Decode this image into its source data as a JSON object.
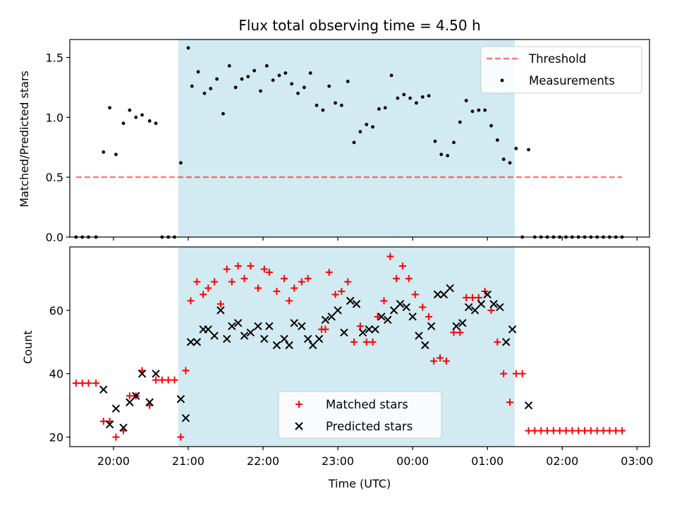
{
  "chart_data": [
    {
      "type": "scatter",
      "title": "Flux total observing time = 4.50 h",
      "xlabel": "",
      "ylabel": "Matched/Predicted stars",
      "xlim": [
        "19:25",
        "03:10"
      ],
      "ylim": [
        0,
        1.65
      ],
      "yticks": [
        "0.0",
        "0.5",
        "1.0",
        "1.5"
      ],
      "shaded_span": [
        "20:52",
        "01:22"
      ],
      "shade_color": "#add8e6",
      "threshold": {
        "name": "Threshold",
        "y": 0.5,
        "x_start": "19:30",
        "x_end": "02:48",
        "color": "#ff0000"
      },
      "series": [
        {
          "name": "Measurements",
          "marker": "dot",
          "color": "#000000",
          "points": [
            [
              "19:30",
              0
            ],
            [
              "19:35",
              0
            ],
            [
              "19:40",
              0
            ],
            [
              "19:46",
              0
            ],
            [
              "19:52",
              0.71
            ],
            [
              "19:57",
              1.08
            ],
            [
              "20:02",
              0.69
            ],
            [
              "20:08",
              0.95
            ],
            [
              "20:13",
              1.06
            ],
            [
              "20:18",
              1.0
            ],
            [
              "20:23",
              1.02
            ],
            [
              "20:29",
              0.97
            ],
            [
              "20:34",
              0.95
            ],
            [
              "20:39",
              0
            ],
            [
              "20:44",
              0
            ],
            [
              "20:49",
              0
            ],
            [
              "20:54",
              0.62
            ],
            [
              "21:00",
              1.58
            ],
            [
              "21:03",
              1.26
            ],
            [
              "21:08",
              1.38
            ],
            [
              "21:13",
              1.2
            ],
            [
              "21:18",
              1.24
            ],
            [
              "21:23",
              1.32
            ],
            [
              "21:28",
              1.03
            ],
            [
              "21:33",
              1.43
            ],
            [
              "21:38",
              1.25
            ],
            [
              "21:43",
              1.32
            ],
            [
              "21:48",
              1.34
            ],
            [
              "21:53",
              1.39
            ],
            [
              "21:58",
              1.22
            ],
            [
              "22:03",
              1.43
            ],
            [
              "22:08",
              1.31
            ],
            [
              "22:13",
              1.35
            ],
            [
              "22:18",
              1.37
            ],
            [
              "22:23",
              1.28
            ],
            [
              "22:28",
              1.2
            ],
            [
              "22:33",
              1.25
            ],
            [
              "22:38",
              1.37
            ],
            [
              "22:43",
              1.1
            ],
            [
              "22:48",
              1.06
            ],
            [
              "22:53",
              1.26
            ],
            [
              "22:58",
              1.12
            ],
            [
              "23:03",
              1.1
            ],
            [
              "23:08",
              1.3
            ],
            [
              "23:13",
              0.79
            ],
            [
              "23:18",
              0.88
            ],
            [
              "23:23",
              0.94
            ],
            [
              "23:28",
              0.92
            ],
            [
              "23:33",
              1.07
            ],
            [
              "23:38",
              1.08
            ],
            [
              "23:43",
              1.35
            ],
            [
              "23:48",
              1.16
            ],
            [
              "23:53",
              1.19
            ],
            [
              "23:58",
              1.16
            ],
            [
              "00:03",
              1.12
            ],
            [
              "00:08",
              1.17
            ],
            [
              "00:13",
              1.18
            ],
            [
              "00:18",
              0.8
            ],
            [
              "00:23",
              0.69
            ],
            [
              "00:28",
              0.68
            ],
            [
              "00:33",
              0.79
            ],
            [
              "00:38",
              0.96
            ],
            [
              "00:43",
              1.14
            ],
            [
              "00:48",
              1.05
            ],
            [
              "00:53",
              1.06
            ],
            [
              "00:58",
              1.06
            ],
            [
              "01:03",
              0.93
            ],
            [
              "01:08",
              0.81
            ],
            [
              "01:13",
              0.65
            ],
            [
              "01:18",
              0.62
            ],
            [
              "01:23",
              0.74
            ],
            [
              "01:28",
              0
            ],
            [
              "01:33",
              0.73
            ],
            [
              "01:38",
              0
            ],
            [
              "01:43",
              0
            ],
            [
              "01:48",
              0
            ],
            [
              "01:53",
              0
            ],
            [
              "01:58",
              0
            ],
            [
              "02:03",
              0
            ],
            [
              "02:08",
              0
            ],
            [
              "02:13",
              0
            ],
            [
              "02:18",
              0
            ],
            [
              "02:23",
              0
            ],
            [
              "02:28",
              0
            ],
            [
              "02:33",
              0
            ],
            [
              "02:38",
              0
            ],
            [
              "02:43",
              0
            ],
            [
              "02:48",
              0
            ]
          ]
        }
      ],
      "legend": {
        "position": "upper right",
        "entries": [
          "Threshold",
          "Measurements"
        ]
      }
    },
    {
      "type": "scatter",
      "title": "",
      "xlabel": "Time (UTC)",
      "ylabel": "Count",
      "xlim": [
        "19:25",
        "03:10"
      ],
      "ylim": [
        17,
        80
      ],
      "yticks": [
        "20",
        "40",
        "60"
      ],
      "xticks": [
        "20:00",
        "21:00",
        "22:00",
        "23:00",
        "00:00",
        "01:00",
        "02:00",
        "03:00"
      ],
      "shaded_span": [
        "20:52",
        "01:22"
      ],
      "shade_color": "#add8e6",
      "series": [
        {
          "name": "Matched stars",
          "marker": "plus",
          "color": "#ff0000",
          "points": [
            [
              "19:30",
              37
            ],
            [
              "19:35",
              37
            ],
            [
              "19:40",
              37
            ],
            [
              "19:46",
              37
            ],
            [
              "19:52",
              25
            ],
            [
              "19:57",
              25
            ],
            [
              "20:02",
              20
            ],
            [
              "20:08",
              22
            ],
            [
              "20:13",
              33
            ],
            [
              "20:18",
              33
            ],
            [
              "20:23",
              41
            ],
            [
              "20:29",
              30
            ],
            [
              "20:34",
              38
            ],
            [
              "20:39",
              38
            ],
            [
              "20:44",
              38
            ],
            [
              "20:49",
              38
            ],
            [
              "20:54",
              20
            ],
            [
              "20:58",
              41
            ],
            [
              "21:02",
              63
            ],
            [
              "21:07",
              69
            ],
            [
              "21:12",
              65
            ],
            [
              "21:16",
              67
            ],
            [
              "21:21",
              69
            ],
            [
              "21:26",
              62
            ],
            [
              "21:31",
              73
            ],
            [
              "21:35",
              69
            ],
            [
              "21:40",
              74
            ],
            [
              "21:45",
              70
            ],
            [
              "21:50",
              74
            ],
            [
              "21:56",
              67
            ],
            [
              "22:01",
              73
            ],
            [
              "22:05",
              72
            ],
            [
              "22:11",
              66
            ],
            [
              "22:17",
              70
            ],
            [
              "22:21",
              63
            ],
            [
              "22:25",
              67
            ],
            [
              "22:31",
              69
            ],
            [
              "22:36",
              70
            ],
            [
              "22:47",
              54
            ],
            [
              "22:50",
              54
            ],
            [
              "22:53",
              72
            ],
            [
              "22:58",
              65
            ],
            [
              "23:03",
              66
            ],
            [
              "23:08",
              69
            ],
            [
              "23:13",
              50
            ],
            [
              "23:18",
              55
            ],
            [
              "23:23",
              50
            ],
            [
              "23:28",
              50
            ],
            [
              "23:32",
              58
            ],
            [
              "23:37",
              63
            ],
            [
              "23:42",
              77
            ],
            [
              "23:47",
              70
            ],
            [
              "23:52",
              74
            ],
            [
              "23:57",
              70
            ],
            [
              "00:02",
              65
            ],
            [
              "00:08",
              61
            ],
            [
              "00:13",
              58
            ],
            [
              "00:17",
              44
            ],
            [
              "00:22",
              45
            ],
            [
              "00:27",
              44
            ],
            [
              "00:33",
              53
            ],
            [
              "00:38",
              53
            ],
            [
              "00:43",
              64
            ],
            [
              "00:48",
              64
            ],
            [
              "00:53",
              64
            ],
            [
              "00:58",
              66
            ],
            [
              "01:03",
              60
            ],
            [
              "01:08",
              50
            ],
            [
              "01:13",
              40
            ],
            [
              "01:18",
              31
            ],
            [
              "01:23",
              40
            ],
            [
              "01:28",
              40
            ],
            [
              "01:33",
              22
            ],
            [
              "01:38",
              22
            ],
            [
              "01:43",
              22
            ],
            [
              "01:48",
              22
            ],
            [
              "01:53",
              22
            ],
            [
              "01:58",
              22
            ],
            [
              "02:03",
              22
            ],
            [
              "02:08",
              22
            ],
            [
              "02:13",
              22
            ],
            [
              "02:18",
              22
            ],
            [
              "02:23",
              22
            ],
            [
              "02:28",
              22
            ],
            [
              "02:33",
              22
            ],
            [
              "02:38",
              22
            ],
            [
              "02:43",
              22
            ],
            [
              "02:48",
              22
            ]
          ]
        },
        {
          "name": "Predicted stars",
          "marker": "x",
          "color": "#000000",
          "points": [
            [
              "19:52",
              35
            ],
            [
              "19:57",
              24
            ],
            [
              "20:02",
              29
            ],
            [
              "20:08",
              23
            ],
            [
              "20:13",
              31
            ],
            [
              "20:18",
              33
            ],
            [
              "20:23",
              40
            ],
            [
              "20:29",
              31
            ],
            [
              "20:34",
              40
            ],
            [
              "20:54",
              32
            ],
            [
              "20:58",
              26
            ],
            [
              "21:02",
              50
            ],
            [
              "21:07",
              50
            ],
            [
              "21:12",
              54
            ],
            [
              "21:16",
              54
            ],
            [
              "21:21",
              52
            ],
            [
              "21:26",
              60
            ],
            [
              "21:31",
              51
            ],
            [
              "21:35",
              55
            ],
            [
              "21:40",
              56
            ],
            [
              "21:45",
              52
            ],
            [
              "21:50",
              53
            ],
            [
              "21:56",
              55
            ],
            [
              "22:01",
              51
            ],
            [
              "22:05",
              55
            ],
            [
              "22:11",
              49
            ],
            [
              "22:17",
              51
            ],
            [
              "22:21",
              49
            ],
            [
              "22:25",
              56
            ],
            [
              "22:31",
              55
            ],
            [
              "22:36",
              51
            ],
            [
              "22:40",
              49
            ],
            [
              "22:45",
              51
            ],
            [
              "22:50",
              57
            ],
            [
              "22:55",
              58
            ],
            [
              "23:00",
              60
            ],
            [
              "23:05",
              53
            ],
            [
              "23:10",
              63
            ],
            [
              "23:15",
              62
            ],
            [
              "23:20",
              53
            ],
            [
              "23:25",
              54
            ],
            [
              "23:30",
              54
            ],
            [
              "23:35",
              58
            ],
            [
              "23:40",
              57
            ],
            [
              "23:45",
              60
            ],
            [
              "23:50",
              62
            ],
            [
              "23:55",
              61
            ],
            [
              "00:00",
              58
            ],
            [
              "00:05",
              52
            ],
            [
              "00:10",
              49
            ],
            [
              "00:15",
              55
            ],
            [
              "00:20",
              65
            ],
            [
              "00:25",
              65
            ],
            [
              "00:30",
              67
            ],
            [
              "00:35",
              55
            ],
            [
              "00:40",
              56
            ],
            [
              "00:45",
              61
            ],
            [
              "00:50",
              60
            ],
            [
              "00:55",
              62
            ],
            [
              "01:00",
              65
            ],
            [
              "01:05",
              62
            ],
            [
              "01:10",
              61
            ],
            [
              "01:15",
              50
            ],
            [
              "01:20",
              54
            ],
            [
              "01:33",
              30
            ]
          ]
        }
      ],
      "legend": {
        "position": "lower center",
        "entries": [
          "Matched stars",
          "Predicted stars"
        ]
      }
    }
  ]
}
